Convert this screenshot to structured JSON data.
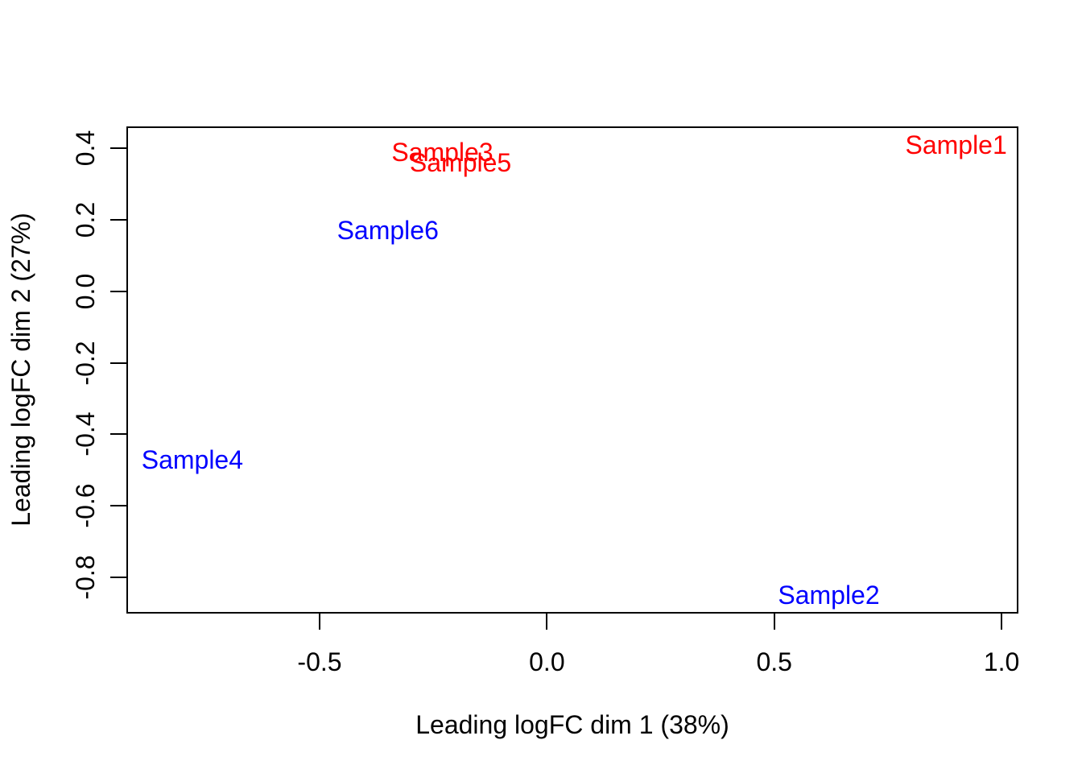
{
  "chart_data": {
    "type": "scatter",
    "title": "",
    "xlabel": "Leading logFC dim 1 (38%)",
    "ylabel": "Leading logFC dim 2 (27%)",
    "xlim": [
      -0.925,
      1.037
    ],
    "ylim": [
      -0.901,
      0.461
    ],
    "grid": false,
    "legend": "none",
    "marker": "text-labels",
    "background_color": "#FFFFFF",
    "axis_color": "#000000",
    "x_ticks": {
      "values": [
        -0.5,
        0.0,
        0.5,
        1.0
      ],
      "labels": [
        "-0.5",
        "0.0",
        "0.5",
        "1.0"
      ]
    },
    "y_ticks": {
      "values": [
        0.4,
        0.2,
        0.0,
        -0.2,
        -0.4,
        -0.6,
        -0.8
      ],
      "labels": [
        "0.4",
        "0.2",
        "0.0",
        "-0.2",
        "-0.4",
        "-0.6",
        "-0.8"
      ]
    },
    "points": [
      {
        "label": "Sample1",
        "x": 0.9,
        "y": 0.41,
        "color": "#FF0000"
      },
      {
        "label": "Sample2",
        "x": 0.62,
        "y": -0.85,
        "color": "#0000FF"
      },
      {
        "label": "Sample3",
        "x": -0.23,
        "y": 0.39,
        "color": "#FF0000"
      },
      {
        "label": "Sample4",
        "x": -0.78,
        "y": -0.47,
        "color": "#0000FF"
      },
      {
        "label": "Sample5",
        "x": -0.19,
        "y": 0.36,
        "color": "#FF0000"
      },
      {
        "label": "Sample6",
        "x": -0.35,
        "y": 0.17,
        "color": "#0000FF"
      }
    ]
  }
}
